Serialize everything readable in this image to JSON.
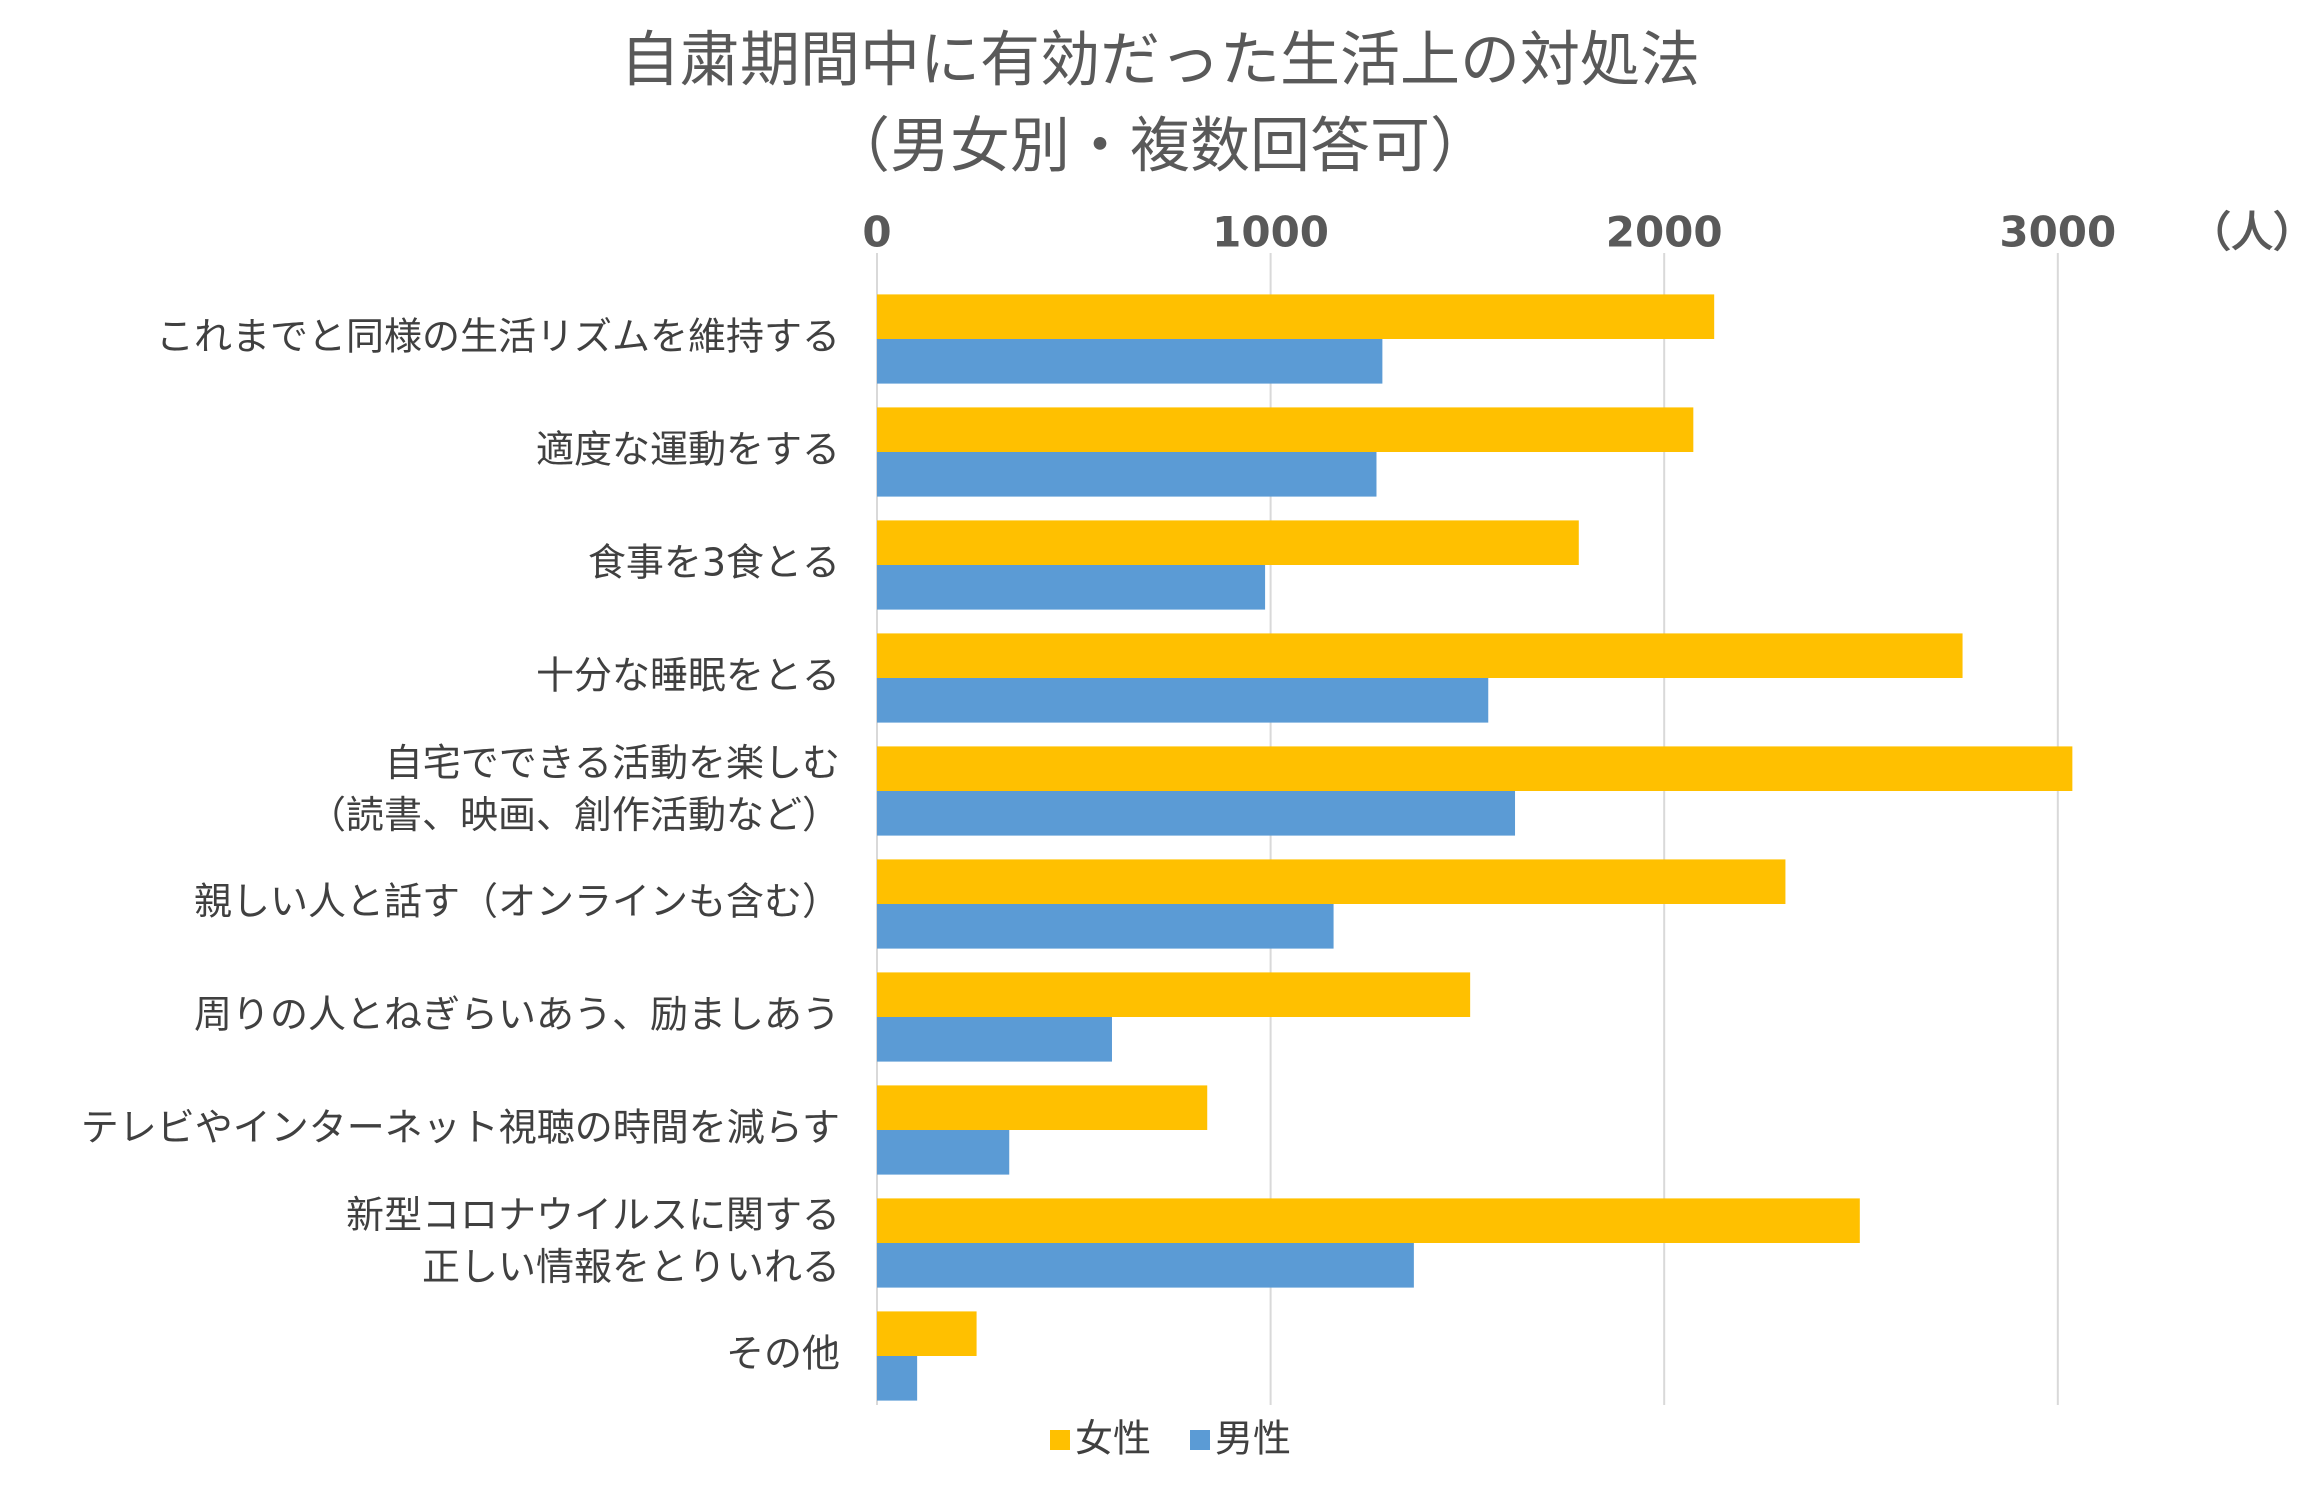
{
  "chart_data": {
    "type": "hbar",
    "title": "自粛期間中に有効だった生活上の対処法",
    "subtitle": "（男女別・複数回答可）",
    "x_unit": "（人）",
    "categories": [
      "これまでと同様の生活リズムを維持する",
      "適度な運動をする",
      "食事を3食とる",
      "十分な睡眠をとる",
      "自宅でできる活動を楽しむ\n（読書、映画、創作活動など）",
      "親しい人と話す（オンラインも含む）",
      "周りの人とねぎらいあう、励ましあう",
      "テレビやインターネット視聴の時間を減らす",
      "新型コロナウイルスに関する\n正しい情報をとりいれる",
      "その他"
    ],
    "series": [
      {
        "name": "女性",
        "color": "#ffc000",
        "values": [
          2127,
          2074,
          1783,
          2758,
          3037,
          2308,
          1507,
          839,
          2497,
          253
        ]
      },
      {
        "name": "男性",
        "color": "#5b9bd5",
        "values": [
          1284,
          1269,
          986,
          1553,
          1621,
          1160,
          597,
          336,
          1364,
          102
        ]
      }
    ],
    "xlim": [
      0,
      3500
    ],
    "xticks": [
      0,
      1000,
      2000,
      3000
    ],
    "grid": true,
    "legend": "bottom"
  }
}
